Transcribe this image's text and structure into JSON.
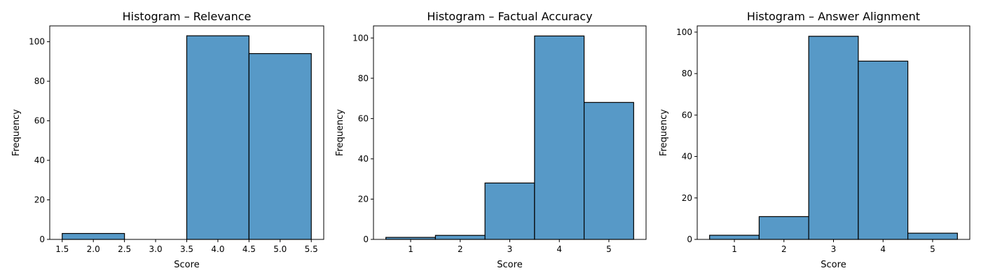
{
  "chart_data": [
    {
      "type": "bar",
      "title": "Histogram – Relevance",
      "xlabel": "Score",
      "ylabel": "Frequency",
      "bins": [
        [
          1.5,
          2.5
        ],
        [
          2.5,
          3.5
        ],
        [
          3.5,
          4.5
        ],
        [
          4.5,
          5.5
        ]
      ],
      "values": [
        3,
        0,
        103,
        94
      ],
      "xlim": [
        1.3,
        5.7
      ],
      "ylim": [
        0,
        108
      ],
      "xticks": [
        1.5,
        2.0,
        2.5,
        3.0,
        3.5,
        4.0,
        4.5,
        5.0,
        5.5
      ],
      "xtick_labels": [
        "1.5",
        "2.0",
        "2.5",
        "3.0",
        "3.5",
        "4.0",
        "4.5",
        "5.0",
        "5.5"
      ],
      "yticks": [
        0,
        20,
        40,
        60,
        80,
        100
      ],
      "ytick_labels": [
        "0",
        "20",
        "40",
        "60",
        "80",
        "100"
      ],
      "color": "#5799c7",
      "grid": false
    },
    {
      "type": "bar",
      "title": "Histogram – Factual Accuracy",
      "xlabel": "Score",
      "ylabel": "Frequency",
      "bins": [
        [
          0.5,
          1.5
        ],
        [
          1.5,
          2.5
        ],
        [
          2.5,
          3.5
        ],
        [
          3.5,
          4.5
        ],
        [
          4.5,
          5.5
        ]
      ],
      "values": [
        1,
        2,
        28,
        101,
        68
      ],
      "xlim": [
        0.25,
        5.75
      ],
      "ylim": [
        0,
        106
      ],
      "xticks": [
        1,
        2,
        3,
        4,
        5
      ],
      "xtick_labels": [
        "1",
        "2",
        "3",
        "4",
        "5"
      ],
      "yticks": [
        0,
        20,
        40,
        60,
        80,
        100
      ],
      "ytick_labels": [
        "0",
        "20",
        "40",
        "60",
        "80",
        "100"
      ],
      "color": "#5799c7",
      "grid": false
    },
    {
      "type": "bar",
      "title": "Histogram – Answer Alignment",
      "xlabel": "Score",
      "ylabel": "Frequency",
      "bins": [
        [
          0.5,
          1.5
        ],
        [
          1.5,
          2.5
        ],
        [
          2.5,
          3.5
        ],
        [
          3.5,
          4.5
        ],
        [
          4.5,
          5.5
        ]
      ],
      "values": [
        2,
        11,
        98,
        86,
        3
      ],
      "xlim": [
        0.25,
        5.75
      ],
      "ylim": [
        0,
        103
      ],
      "xticks": [
        1,
        2,
        3,
        4,
        5
      ],
      "xtick_labels": [
        "1",
        "2",
        "3",
        "4",
        "5"
      ],
      "yticks": [
        0,
        20,
        40,
        60,
        80,
        100
      ],
      "ytick_labels": [
        "0",
        "20",
        "40",
        "60",
        "80",
        "100"
      ],
      "color": "#5799c7",
      "grid": false
    }
  ]
}
